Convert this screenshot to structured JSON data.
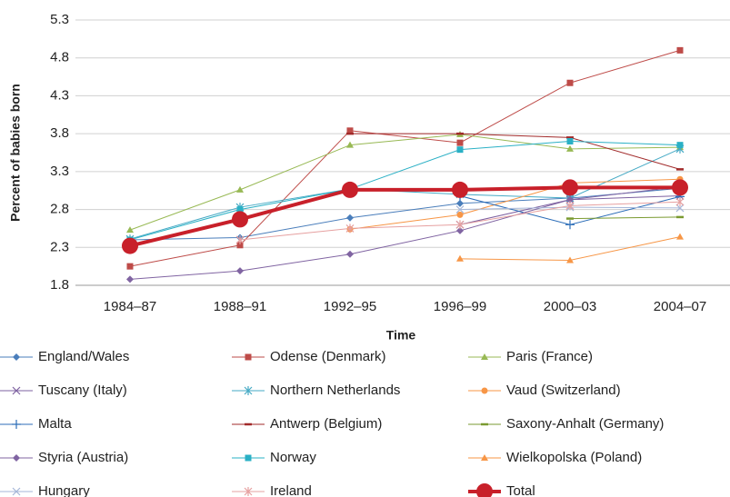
{
  "chart_data": {
    "type": "line",
    "x_label": "Time",
    "y_label": "Percent of babies born",
    "categories": [
      "1984–87",
      "1988–91",
      "1992–95",
      "1996–99",
      "2000–03",
      "2004–07"
    ],
    "ylim": [
      1.8,
      5.3
    ],
    "yticks": [
      1.8,
      2.3,
      2.8,
      3.3,
      3.8,
      4.3,
      4.8,
      5.3
    ],
    "grid": true,
    "series": [
      {
        "name": "England/Wales",
        "color": "#4a7ebb",
        "marker": "diamond",
        "values": [
          2.4,
          2.43,
          2.69,
          2.88,
          2.95,
          3.08
        ]
      },
      {
        "name": "Odense (Denmark)",
        "color": "#be4b48",
        "marker": "square",
        "values": [
          2.05,
          2.33,
          3.84,
          3.68,
          4.47,
          4.9
        ]
      },
      {
        "name": "Paris (France)",
        "color": "#98b954",
        "marker": "triangle",
        "values": [
          2.53,
          3.06,
          3.65,
          3.79,
          3.6,
          3.62
        ]
      },
      {
        "name": "Tuscany (Italy)",
        "color": "#7d60a0",
        "marker": "x",
        "values": [
          null,
          null,
          null,
          2.6,
          2.93,
          2.98
        ]
      },
      {
        "name": "Northern Netherlands",
        "color": "#46aac5",
        "marker": "star",
        "values": [
          2.41,
          2.83,
          3.07,
          3.0,
          2.95,
          3.6
        ]
      },
      {
        "name": "Vaud (Switzerland)",
        "color": "#f79646",
        "marker": "circle",
        "values": [
          null,
          null,
          2.54,
          2.73,
          3.15,
          3.2
        ]
      },
      {
        "name": "Malta",
        "color": "#2c6db8",
        "marker": "plus",
        "values": [
          null,
          null,
          null,
          2.98,
          2.6,
          2.97
        ]
      },
      {
        "name": "Antwerp (Belgium)",
        "color": "#a12a2a",
        "marker": "dash",
        "values": [
          null,
          null,
          3.8,
          3.8,
          3.75,
          3.33
        ]
      },
      {
        "name": "Saxony-Anhalt (Germany)",
        "color": "#7a9a30",
        "marker": "dash",
        "values": [
          null,
          null,
          null,
          null,
          2.68,
          2.7
        ]
      },
      {
        "name": "Styria (Austria)",
        "color": "#8064a2",
        "marker": "diamond",
        "values": [
          1.88,
          1.99,
          2.21,
          2.52,
          2.93,
          3.1
        ]
      },
      {
        "name": "Norway",
        "color": "#2ab0c5",
        "marker": "square",
        "values": [
          2.4,
          2.8,
          3.07,
          3.59,
          3.7,
          3.65
        ]
      },
      {
        "name": "Wielkopolska (Poland)",
        "color": "#f79646",
        "marker": "triangle",
        "values": [
          null,
          null,
          null,
          2.15,
          2.13,
          2.44
        ]
      },
      {
        "name": "Hungary",
        "color": "#a5b6d8",
        "marker": "x",
        "values": [
          null,
          null,
          null,
          2.8,
          2.83,
          2.82
        ]
      },
      {
        "name": "Ireland",
        "color": "#e6a0a0",
        "marker": "star",
        "values": [
          null,
          2.4,
          2.55,
          2.6,
          2.85,
          2.9
        ]
      },
      {
        "name": "Total",
        "color": "#c8202a",
        "marker": "bigcircle",
        "values": [
          2.32,
          2.67,
          3.06,
          3.06,
          3.09,
          3.09
        ]
      }
    ]
  }
}
